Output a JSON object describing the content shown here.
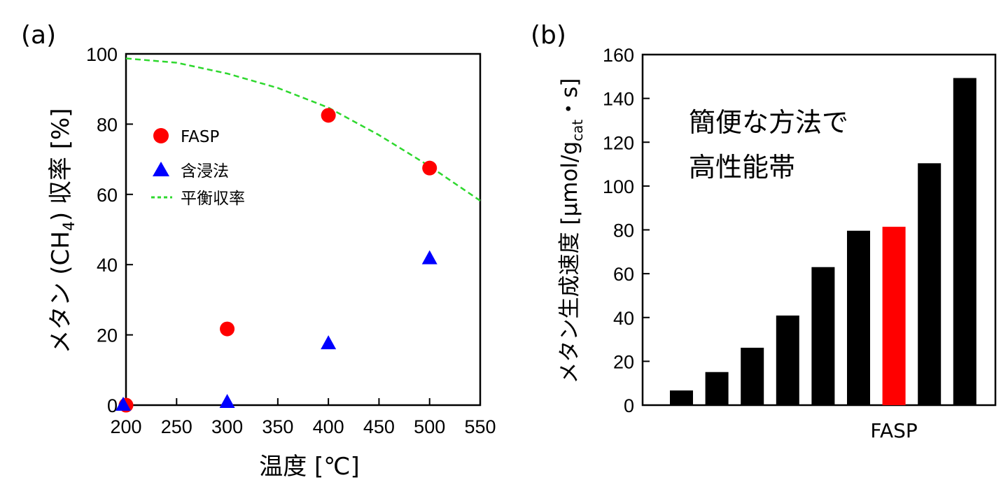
{
  "chart_data": [
    {
      "panel": "(a)",
      "type": "scatter",
      "xlabel": "温度 [℃]",
      "ylabel": "メタン (CH4) 収率 [%]",
      "ylabel_pre": "メタン (CH",
      "ylabel_sub": "4",
      "ylabel_post": ") 収率 [%]",
      "xlim": [
        200,
        550
      ],
      "ylim": [
        0,
        100
      ],
      "xticks": [
        200,
        250,
        300,
        350,
        400,
        450,
        500,
        550
      ],
      "yticks": [
        0,
        20,
        40,
        60,
        80,
        100
      ],
      "legend_position": "upper-left",
      "series": [
        {
          "name": "FASP",
          "marker": "circle",
          "color": "#ff0000",
          "x": [
            200,
            300,
            400,
            500
          ],
          "y": [
            0,
            21.7,
            82.5,
            67.5
          ]
        },
        {
          "name": "含浸法",
          "marker": "triangle",
          "color": "#0000ff",
          "x": [
            200,
            300,
            400,
            500
          ],
          "y": [
            0,
            0.8,
            17.5,
            41.7
          ]
        },
        {
          "name": "平衡収率",
          "marker": "dashed-line",
          "color": "#2ed82e",
          "x": [
            200,
            250,
            300,
            350,
            400,
            450,
            500,
            550
          ],
          "y": [
            98.7,
            97.5,
            94.4,
            90.3,
            84.7,
            76.9,
            68.0,
            58.2
          ]
        }
      ]
    },
    {
      "panel": "(b)",
      "type": "bar",
      "ylabel": "メタン生成速度 [μmol/gcat・s]",
      "ylabel_pre": "メタン生成速度 [μmol/g",
      "ylabel_sub": "cat",
      "ylabel_post": "・s]",
      "ylim": [
        0,
        160
      ],
      "yticks": [
        0,
        20,
        40,
        60,
        80,
        100,
        120,
        140,
        160
      ],
      "values": [
        6.7,
        15.1,
        26.2,
        40.9,
        63.0,
        79.6,
        81.4,
        110.4,
        149.3
      ],
      "bar_colors": [
        "#000000",
        "#000000",
        "#000000",
        "#000000",
        "#000000",
        "#000000",
        "#ff0000",
        "#000000",
        "#000000"
      ],
      "highlight_label": "FASP",
      "highlight_index": 6,
      "annotation_lines": [
        "簡便な方法で",
        "高性能帯"
      ]
    }
  ]
}
